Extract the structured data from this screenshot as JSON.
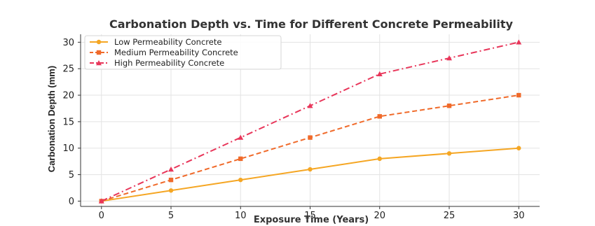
{
  "chart_data": {
    "type": "line",
    "title": "Carbonation Depth vs. Time for Different Concrete Permeability",
    "xlabel": "Exposure Time (Years)",
    "ylabel": "Carbonation Depth (mm)",
    "x": [
      0,
      5,
      10,
      15,
      20,
      25,
      30
    ],
    "xticks": [
      0,
      5,
      10,
      15,
      20,
      25,
      30
    ],
    "yticks": [
      0,
      5,
      10,
      15,
      20,
      25,
      30
    ],
    "xlim": [
      -1.5,
      31.5
    ],
    "ylim": [
      -1,
      31.5
    ],
    "grid": true,
    "legend_position": "top-left",
    "series": [
      {
        "name": "Low Permeability Concrete",
        "values": [
          0,
          2,
          4,
          6,
          8,
          9,
          10
        ],
        "color": "#f5a623",
        "marker": "circle",
        "dash": "solid"
      },
      {
        "name": "Medium Permeability Concrete",
        "values": [
          0,
          4,
          8,
          12,
          16,
          18,
          20
        ],
        "color": "#f06a2a",
        "marker": "square",
        "dash": "dashed"
      },
      {
        "name": "High Permeability Concrete",
        "values": [
          0,
          6,
          12,
          18,
          24,
          27,
          30
        ],
        "color": "#e8365a",
        "marker": "triangle",
        "dash": "dashdot"
      }
    ]
  }
}
